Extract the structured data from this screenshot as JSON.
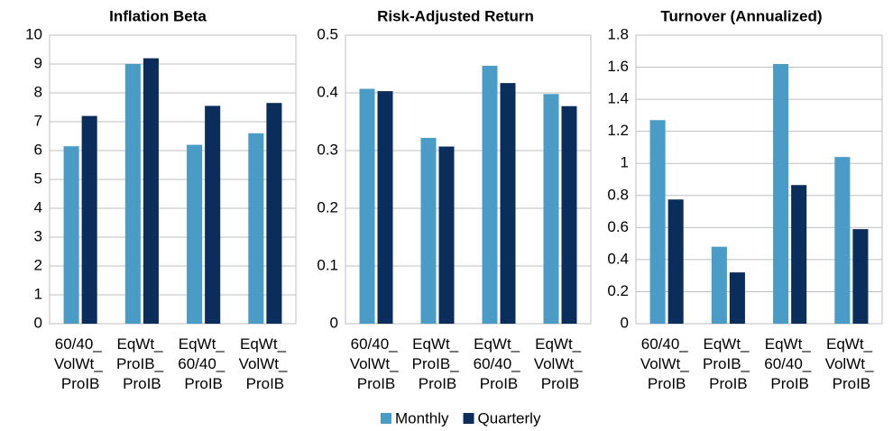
{
  "chart_data": [
    {
      "type": "bar",
      "title": "Inflation Beta",
      "categories": [
        "60/40_ VolWt_ ProIB",
        "EqWt_ ProIB_ ProIB",
        "EqWt_ 60/40_ ProIB",
        "EqWt_ VolWt_ ProIB"
      ],
      "series": [
        {
          "name": "Monthly",
          "color": "#4b9bc7",
          "values": [
            6.15,
            9.0,
            6.2,
            6.6
          ]
        },
        {
          "name": "Quarterly",
          "color": "#0b2d5c",
          "values": [
            7.2,
            9.2,
            7.55,
            7.65
          ]
        }
      ],
      "ylim": [
        0,
        10
      ],
      "yticks": [
        0,
        1,
        2,
        3,
        4,
        5,
        6,
        7,
        8,
        9,
        10
      ],
      "grid": true
    },
    {
      "type": "bar",
      "title": "Risk-Adjusted Return",
      "categories": [
        "60/40_ VolWt_ ProIB",
        "EqWt_ ProIB_ ProIB",
        "EqWt_ 60/40_ ProIB",
        "EqWt_ VolWt_ ProIB"
      ],
      "series": [
        {
          "color": "#4b9bc7",
          "values": [
            0.407,
            0.322,
            0.447,
            0.398
          ]
        },
        {
          "color": "#0b2d5c",
          "values": [
            0.403,
            0.307,
            0.417,
            0.377
          ]
        }
      ],
      "ylim": [
        0,
        0.5
      ],
      "yticks": [
        0,
        0.1,
        0.2,
        0.3,
        0.4,
        0.5
      ],
      "grid": true
    },
    {
      "type": "bar",
      "title": "Turnover (Annualized)",
      "categories": [
        "60/40_ VolWt_ ProIB",
        "EqWt_ ProIB_ ProIB",
        "EqWt_ 60/40_ ProIB",
        "EqWt_ VolWt_ ProIB"
      ],
      "series": [
        {
          "color": "#4b9bc7",
          "values": [
            1.27,
            0.48,
            1.62,
            1.04
          ]
        },
        {
          "color": "#0b2d5c",
          "values": [
            0.775,
            0.32,
            0.865,
            0.59
          ]
        }
      ],
      "ylim": [
        0,
        1.8
      ],
      "yticks": [
        0,
        0.2,
        0.4,
        0.6,
        0.8,
        1,
        1.2,
        1.4,
        1.6,
        1.8
      ],
      "grid": true
    }
  ]
}
